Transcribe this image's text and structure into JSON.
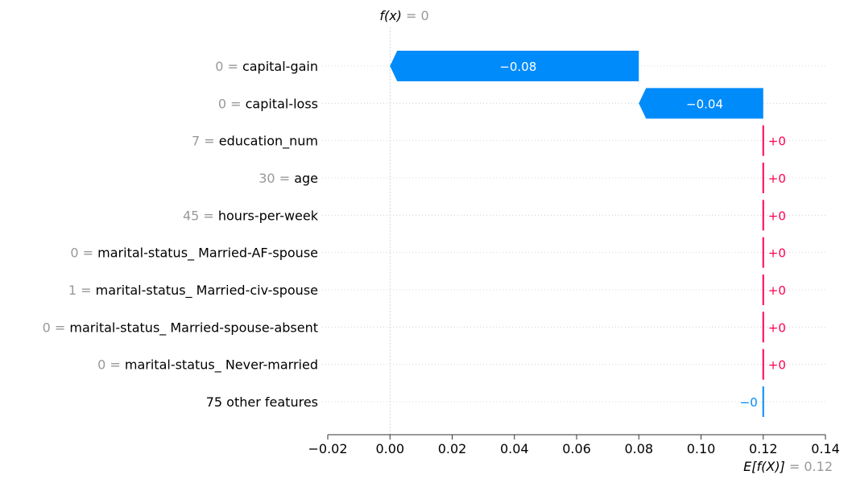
{
  "chart_data": {
    "type": "waterfall",
    "title": "",
    "xlabel": "",
    "ylabel": "",
    "top_label": {
      "fx": "f(x)",
      "eq": " = 0",
      "value": 0
    },
    "bottom_label": {
      "efx": "E[f(X)]",
      "eq": " = 0.12",
      "value": 0.12
    },
    "xlim": [
      -0.02,
      0.14
    ],
    "xticks": [
      {
        "value": -0.02,
        "label": "−0.02"
      },
      {
        "value": 0.0,
        "label": "0.00"
      },
      {
        "value": 0.02,
        "label": "0.02"
      },
      {
        "value": 0.04,
        "label": "0.04"
      },
      {
        "value": 0.06,
        "label": "0.06"
      },
      {
        "value": 0.08,
        "label": "0.08"
      },
      {
        "value": 0.1,
        "label": "0.10"
      },
      {
        "value": 0.12,
        "label": "0.12"
      },
      {
        "value": 0.14,
        "label": "0.14"
      }
    ],
    "features": [
      {
        "value_text": "0",
        "name": "capital-gain",
        "contribution": -0.08,
        "label": "−0.08"
      },
      {
        "value_text": "0",
        "name": "capital-loss",
        "contribution": -0.04,
        "label": "−0.04"
      },
      {
        "value_text": "7",
        "name": "education_num",
        "contribution": 0,
        "sign": "+",
        "label": "+0"
      },
      {
        "value_text": "30",
        "name": "age",
        "contribution": 0,
        "sign": "+",
        "label": "+0"
      },
      {
        "value_text": "45",
        "name": "hours-per-week",
        "contribution": 0,
        "sign": "+",
        "label": "+0"
      },
      {
        "value_text": "0",
        "name": "marital-status_ Married-AF-spouse",
        "contribution": 0,
        "sign": "+",
        "label": "+0"
      },
      {
        "value_text": "1",
        "name": "marital-status_ Married-civ-spouse",
        "contribution": 0,
        "sign": "+",
        "label": "+0"
      },
      {
        "value_text": "0",
        "name": "marital-status_ Married-spouse-absent",
        "contribution": 0,
        "sign": "+",
        "label": "+0"
      },
      {
        "value_text": "0",
        "name": "marital-status_ Never-married",
        "contribution": 0,
        "sign": "+",
        "label": "+0"
      },
      {
        "value_text": "",
        "name": "75 other features",
        "contribution": 0,
        "sign": "-",
        "label": "−0"
      }
    ],
    "colors": {
      "positive": "#ff0051",
      "negative": "#008bfb",
      "grid": "#cccccc",
      "axis": "#333333",
      "muted": "#999999"
    }
  }
}
